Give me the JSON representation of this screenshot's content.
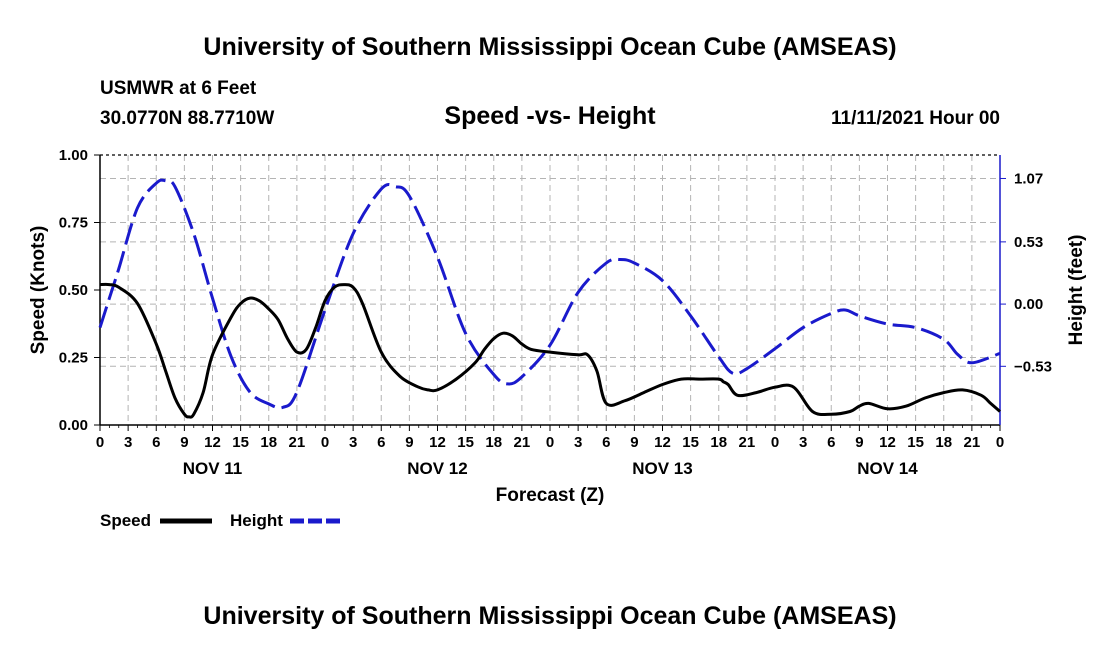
{
  "header": {
    "title": "University of Southern Mississippi Ocean Cube (AMSEAS)",
    "station": "USMWR at 6 Feet",
    "location": "30.0770N  88.7710W",
    "chart_title": "Speed -vs- Height",
    "datetime": "11/11/2021 Hour 00"
  },
  "footer": {
    "title": "University of Southern Mississippi Ocean Cube (AMSEAS)"
  },
  "legend": {
    "speed_label": "Speed",
    "height_label": "Height"
  },
  "colors": {
    "speed": "#000000",
    "height": "#1a1acc",
    "grid": "#b4b4b4"
  },
  "chart_data": {
    "type": "line",
    "title": "Speed -vs- Height",
    "xlabel": "Forecast (Z)",
    "ylabel": "Speed (Knots)",
    "y2label": "Height (feet)",
    "xlim": [
      0,
      96
    ],
    "ylim": [
      0,
      1
    ],
    "y2lim": [
      -1.03,
      1.27
    ],
    "x_ticks": [
      0,
      3,
      6,
      9,
      12,
      15,
      18,
      21,
      24,
      27,
      30,
      33,
      36,
      39,
      42,
      45,
      48,
      51,
      54,
      57,
      60,
      63,
      66,
      69,
      72,
      75,
      78,
      81,
      84,
      87,
      90,
      93,
      96
    ],
    "x_tick_labels": [
      "0",
      "3",
      "6",
      "9",
      "12",
      "15",
      "18",
      "21",
      "0",
      "3",
      "6",
      "9",
      "12",
      "15",
      "18",
      "21",
      "0",
      "3",
      "6",
      "9",
      "12",
      "15",
      "18",
      "21",
      "0",
      "3",
      "6",
      "9",
      "12",
      "15",
      "18",
      "21",
      "0"
    ],
    "y_ticks": [
      0,
      0.25,
      0.5,
      0.75,
      1.0
    ],
    "y_tick_labels": [
      "0.00",
      "0.25",
      "0.50",
      "0.75",
      "1.00"
    ],
    "y2_ticks": [
      -0.53,
      0.0,
      0.53,
      1.07
    ],
    "y2_tick_labels": [
      "−0.53",
      "0.00",
      "0.53",
      "1.07"
    ],
    "day_labels": [
      {
        "x": 12,
        "label": "NOV 11"
      },
      {
        "x": 36,
        "label": "NOV 12"
      },
      {
        "x": 60,
        "label": "NOV 13"
      },
      {
        "x": 84,
        "label": "NOV 14"
      }
    ],
    "grid": true,
    "series": [
      {
        "name": "Speed",
        "axis": "left",
        "style": "solid",
        "x": [
          0,
          1,
          2,
          4,
          6,
          7,
          8,
          9,
          9.5,
          10,
          11,
          12,
          14,
          15,
          16,
          17,
          18,
          19,
          20,
          21,
          22,
          23,
          24,
          25,
          26,
          27,
          28,
          30,
          32,
          34,
          35,
          36,
          38,
          40,
          41,
          42,
          43,
          44,
          45,
          46,
          48,
          51,
          52,
          53,
          54,
          56,
          58,
          60,
          62,
          64,
          66,
          66.5,
          67,
          68,
          70,
          72,
          74,
          76,
          78,
          80,
          81,
          82,
          84,
          86,
          88,
          90,
          92,
          94,
          95,
          96
        ],
        "values": [
          0.52,
          0.52,
          0.51,
          0.45,
          0.3,
          0.2,
          0.1,
          0.04,
          0.03,
          0.04,
          0.12,
          0.26,
          0.4,
          0.45,
          0.47,
          0.46,
          0.43,
          0.39,
          0.32,
          0.27,
          0.28,
          0.36,
          0.46,
          0.51,
          0.52,
          0.51,
          0.45,
          0.27,
          0.18,
          0.14,
          0.13,
          0.13,
          0.17,
          0.23,
          0.28,
          0.32,
          0.34,
          0.33,
          0.3,
          0.28,
          0.27,
          0.26,
          0.26,
          0.2,
          0.08,
          0.09,
          0.12,
          0.15,
          0.17,
          0.17,
          0.17,
          0.16,
          0.15,
          0.11,
          0.12,
          0.14,
          0.14,
          0.05,
          0.04,
          0.05,
          0.07,
          0.08,
          0.06,
          0.07,
          0.1,
          0.12,
          0.13,
          0.11,
          0.08,
          0.05
        ]
      },
      {
        "name": "Height",
        "axis": "right",
        "style": "dashed",
        "x": [
          0,
          1,
          2,
          4,
          6,
          7,
          8,
          10,
          12,
          14,
          16,
          18,
          19.5,
          21,
          24,
          27,
          30,
          31.5,
          33,
          36,
          39,
          42,
          43.5,
          45,
          48,
          51,
          54,
          55.5,
          57,
          60,
          63,
          66,
          67.5,
          69,
          72,
          75,
          78,
          79.5,
          81,
          84,
          87,
          90,
          91.5,
          93,
          96
        ],
        "values": [
          -0.2,
          0.05,
          0.3,
          0.82,
          1.03,
          1.05,
          1.0,
          0.6,
          0.05,
          -0.45,
          -0.75,
          -0.85,
          -0.88,
          -0.75,
          -0.05,
          0.6,
          0.98,
          1.0,
          0.92,
          0.4,
          -0.25,
          -0.6,
          -0.68,
          -0.62,
          -0.35,
          0.1,
          0.35,
          0.38,
          0.35,
          0.2,
          -0.1,
          -0.45,
          -0.59,
          -0.55,
          -0.38,
          -0.2,
          -0.08,
          -0.05,
          -0.1,
          -0.17,
          -0.2,
          -0.3,
          -0.43,
          -0.5,
          -0.42
        ]
      }
    ]
  }
}
